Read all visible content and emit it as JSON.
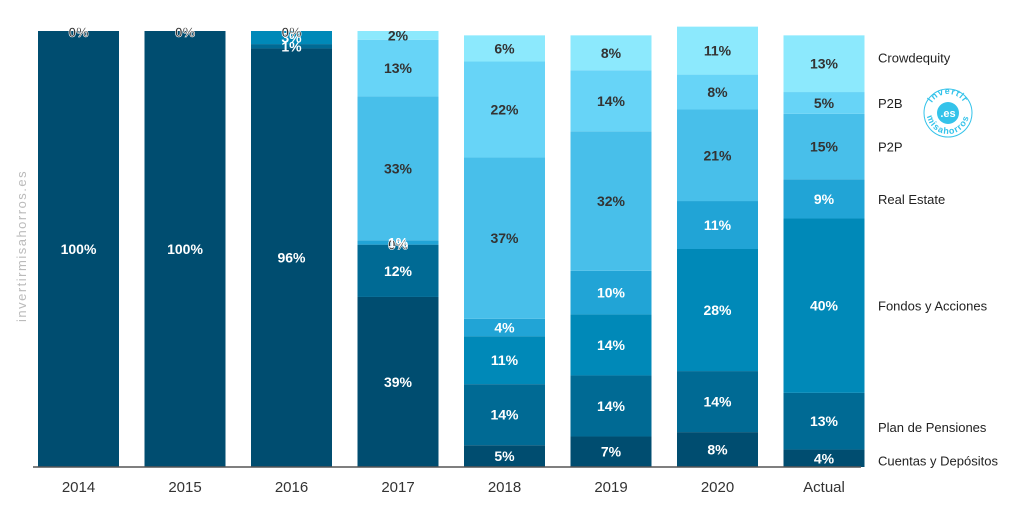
{
  "chart_data": {
    "type": "bar",
    "stacked": true,
    "percent": true,
    "categories": [
      "2014",
      "2015",
      "2016",
      "2017",
      "2018",
      "2019",
      "2020",
      "Actual"
    ],
    "series": [
      {
        "name": "Cuentas y Depósitos",
        "color": "#004d70",
        "values": [
          100,
          100,
          96,
          39,
          5,
          7,
          8,
          4
        ]
      },
      {
        "name": "Plan de Pensiones",
        "color": "#006a94",
        "values": [
          0,
          0,
          1,
          12,
          14,
          14,
          14,
          13
        ]
      },
      {
        "name": "Fondos y Acciones",
        "color": "#0089b8",
        "values": [
          0,
          0,
          3,
          0,
          11,
          14,
          28,
          40
        ]
      },
      {
        "name": "Real Estate",
        "color": "#21a4d6",
        "values": [
          0,
          0,
          0,
          1,
          4,
          10,
          11,
          9
        ]
      },
      {
        "name": "P2P",
        "color": "#48bfea",
        "values": [
          0,
          0,
          0,
          33,
          37,
          32,
          21,
          15
        ]
      },
      {
        "name": "P2B",
        "color": "#67d4f7",
        "values": [
          0,
          0,
          0,
          13,
          22,
          14,
          8,
          5
        ]
      },
      {
        "name": "Crowdequity",
        "color": "#8ce9fd",
        "values": [
          0,
          0,
          0,
          2,
          6,
          8,
          11,
          13
        ]
      }
    ],
    "labels": [
      [
        {
          "series": 0,
          "text": "100%"
        },
        {
          "series": 6,
          "text": "0%"
        }
      ],
      [
        {
          "series": 0,
          "text": "100%"
        },
        {
          "series": 6,
          "text": "0%"
        }
      ],
      [
        {
          "series": 0,
          "text": "96%"
        },
        {
          "series": 1,
          "text": "1%"
        },
        {
          "series": 2,
          "text": "3%"
        },
        {
          "series": 6,
          "text": "0%"
        }
      ],
      [
        {
          "series": 0,
          "text": "39%"
        },
        {
          "series": 1,
          "text": "12%"
        },
        {
          "series": 2,
          "text": "0%"
        },
        {
          "series": 3,
          "text": "1%"
        },
        {
          "series": 4,
          "text": "33%"
        },
        {
          "series": 5,
          "text": "13%"
        },
        {
          "series": 6,
          "text": "2%"
        }
      ],
      [
        {
          "series": 0,
          "text": "5%"
        },
        {
          "series": 1,
          "text": "14%"
        },
        {
          "series": 2,
          "text": "11%"
        },
        {
          "series": 3,
          "text": "4%"
        },
        {
          "series": 4,
          "text": "37%"
        },
        {
          "series": 5,
          "text": "22%"
        },
        {
          "series": 6,
          "text": "6%"
        }
      ],
      [
        {
          "series": 0,
          "text": "7%"
        },
        {
          "series": 1,
          "text": "14%"
        },
        {
          "series": 2,
          "text": "14%"
        },
        {
          "series": 3,
          "text": "10%"
        },
        {
          "series": 4,
          "text": "32%"
        },
        {
          "series": 5,
          "text": "14%"
        },
        {
          "series": 6,
          "text": "8%"
        }
      ],
      [
        {
          "series": 0,
          "text": "8%"
        },
        {
          "series": 1,
          "text": "14%"
        },
        {
          "series": 2,
          "text": "28%"
        },
        {
          "series": 3,
          "text": "11%"
        },
        {
          "series": 4,
          "text": "21%"
        },
        {
          "series": 5,
          "text": "8%"
        },
        {
          "series": 6,
          "text": "11%"
        }
      ],
      [
        {
          "series": 0,
          "text": "4%"
        },
        {
          "series": 1,
          "text": "13%"
        },
        {
          "series": 2,
          "text": "40%"
        },
        {
          "series": 3,
          "text": "9%"
        },
        {
          "series": 4,
          "text": "15%"
        },
        {
          "series": 5,
          "text": "5%"
        },
        {
          "series": 6,
          "text": "13%"
        }
      ]
    ],
    "ylim": [
      0,
      100
    ],
    "legend": "right",
    "grid": false
  },
  "watermark": {
    "text": "invertirmisahorros.es",
    "logo_top": "invertir",
    "logo_center": ".es",
    "logo_bottom": "misahorros"
  },
  "colors": {
    "axis": "#555555",
    "label_dark": "#333333",
    "label_light": "#ffffff"
  }
}
